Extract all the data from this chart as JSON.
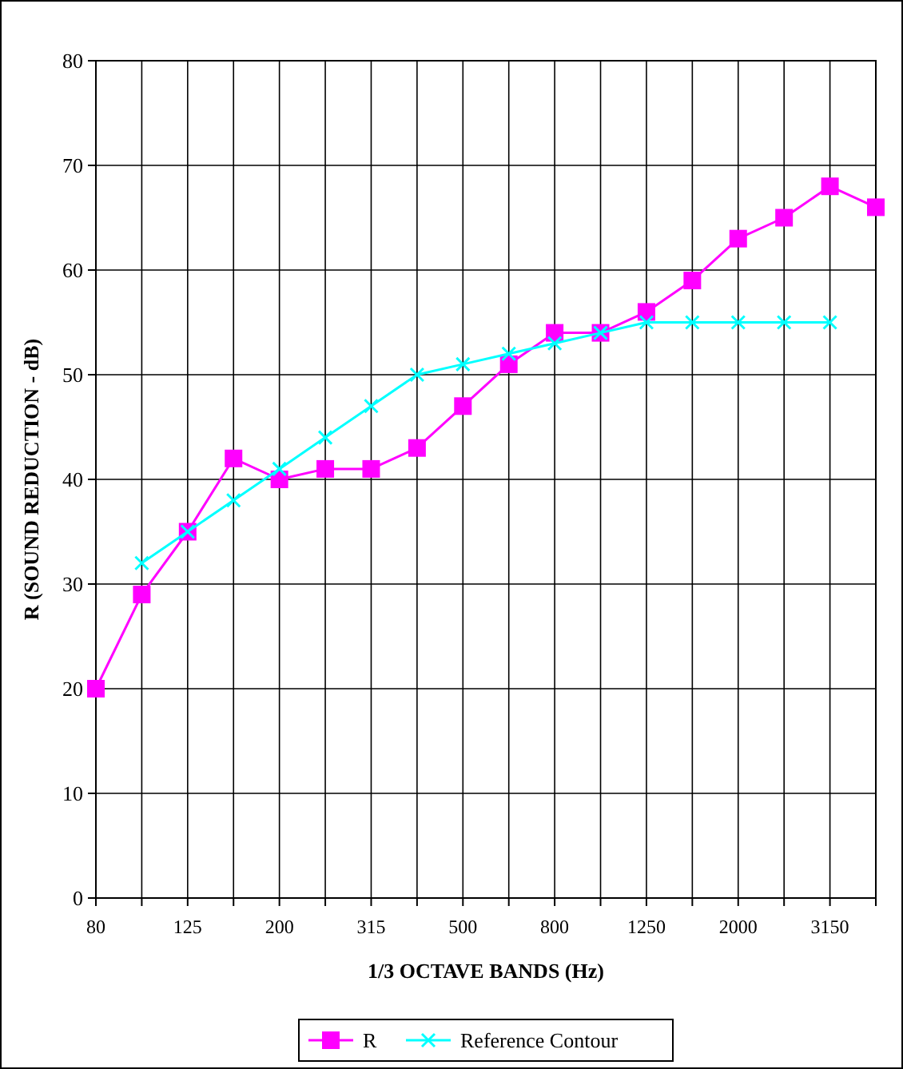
{
  "chart_data": {
    "type": "line",
    "xlabel": "1/3 OCTAVE BANDS (Hz)",
    "ylabel": "R (SOUND REDUCTION - dB)",
    "categories": [
      "80",
      null,
      "125",
      null,
      "200",
      null,
      "315",
      null,
      "500",
      null,
      "800",
      null,
      "1250",
      null,
      "2000",
      null,
      "3150",
      null
    ],
    "series": [
      {
        "name": "R",
        "color": "#ff00ff",
        "marker": "square",
        "values": [
          20,
          29,
          35,
          42,
          40,
          41,
          41,
          43,
          47,
          51,
          54,
          54,
          56,
          59,
          63,
          65,
          68,
          66
        ]
      },
      {
        "name": "Reference Contour",
        "color": "#00ffff",
        "marker": "cross",
        "values": [
          null,
          32,
          35,
          38,
          41,
          44,
          47,
          50,
          51,
          52,
          53,
          54,
          55,
          55,
          55,
          55,
          55,
          null
        ]
      }
    ],
    "ylim": [
      0,
      80
    ],
    "yticks": [
      0,
      10,
      20,
      30,
      40,
      50,
      60,
      70,
      80
    ],
    "grid": true,
    "legend": "bottom"
  }
}
